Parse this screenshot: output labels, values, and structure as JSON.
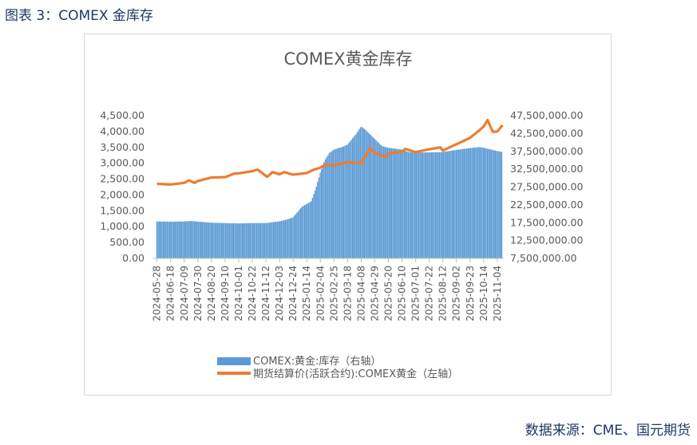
{
  "figure": {
    "caption": "图表 3：COMEX 金库存",
    "source": "数据来源：CME、国元期货"
  },
  "colors": {
    "caption": "#1f3864",
    "bars": "#5b9bd5",
    "line": "#ed7d31",
    "text": "#595959"
  },
  "chart_data": {
    "type": "bar",
    "title": "COMEX黄金库存",
    "grid": false,
    "legend_position": "bottom",
    "x_tick_labels": [
      "2024-05-28",
      "2024-06-18",
      "2024-07-09",
      "2024-07-30",
      "2024-08-20",
      "2024-09-10",
      "2024-10-01",
      "2024-10-22",
      "2024-11-12",
      "2024-12-03",
      "2024-12-24",
      "2025-01-14",
      "2025-02-04",
      "2025-02-25",
      "2025-03-18",
      "2025-04-08",
      "2025-04-29",
      "2025-05-20",
      "2025-06-10",
      "2025-07-01",
      "2025-07-22",
      "2025-08-12",
      "2025-09-02",
      "2025-09-23",
      "2025-10-14",
      "2025-11-04"
    ],
    "y_left": {
      "ticks": [
        "0.00",
        "500.00",
        "1,000.00",
        "1,500.00",
        "2,000.00",
        "2,500.00",
        "3,000.00",
        "3,500.00",
        "4,000.00",
        "4,500.00"
      ],
      "ylim": [
        0,
        4500
      ]
    },
    "y_right": {
      "ticks": [
        "7,500,000.00",
        "12,500,000.00",
        "17,500,000.00",
        "22,500,000.00",
        "27,500,000.00",
        "32,500,000.00",
        "37,500,000.00",
        "42,500,000.00",
        "47,500,000.00"
      ],
      "ylim": [
        7500000,
        47500000
      ]
    },
    "series": [
      {
        "name": "COMEX:黄金:库存（右轴）",
        "type": "bar",
        "axis": "right",
        "points": [
          [
            "2024-05-28",
            17850000
          ],
          [
            "2024-06-18",
            17800000
          ],
          [
            "2024-07-09",
            17850000
          ],
          [
            "2024-07-20",
            18000000
          ],
          [
            "2024-07-30",
            17800000
          ],
          [
            "2024-08-20",
            17500000
          ],
          [
            "2024-09-10",
            17400000
          ],
          [
            "2024-10-01",
            17300000
          ],
          [
            "2024-10-22",
            17400000
          ],
          [
            "2024-11-12",
            17400000
          ],
          [
            "2024-11-25",
            17700000
          ],
          [
            "2024-12-03",
            17900000
          ],
          [
            "2024-12-15",
            18400000
          ],
          [
            "2024-12-24",
            19000000
          ],
          [
            "2025-01-07",
            22000000
          ],
          [
            "2025-01-14",
            22700000
          ],
          [
            "2025-01-21",
            23500000
          ],
          [
            "2025-01-28",
            27000000
          ],
          [
            "2025-02-04",
            31500000
          ],
          [
            "2025-02-11",
            35000000
          ],
          [
            "2025-02-18",
            37000000
          ],
          [
            "2025-02-25",
            38000000
          ],
          [
            "2025-03-11",
            38800000
          ],
          [
            "2025-03-18",
            39400000
          ],
          [
            "2025-04-01",
            42500000
          ],
          [
            "2025-04-08",
            44500000
          ],
          [
            "2025-04-15",
            43500000
          ],
          [
            "2025-04-29",
            41000000
          ],
          [
            "2025-05-10",
            39000000
          ],
          [
            "2025-05-20",
            38500000
          ],
          [
            "2025-06-10",
            38000000
          ],
          [
            "2025-06-20",
            37300000
          ],
          [
            "2025-07-01",
            37200000
          ],
          [
            "2025-07-22",
            37200000
          ],
          [
            "2025-08-12",
            37300000
          ],
          [
            "2025-09-02",
            37900000
          ],
          [
            "2025-09-23",
            38400000
          ],
          [
            "2025-10-07",
            38700000
          ],
          [
            "2025-10-14",
            38500000
          ],
          [
            "2025-11-04",
            37600000
          ],
          [
            "2025-11-12",
            37300000
          ]
        ]
      },
      {
        "name": "期货结算价(活跃合约):COMEX黄金（左轴）",
        "type": "line",
        "axis": "left",
        "points": [
          [
            "2024-05-28",
            2350
          ],
          [
            "2024-06-18",
            2330
          ],
          [
            "2024-07-09",
            2380
          ],
          [
            "2024-07-16",
            2460
          ],
          [
            "2024-07-25",
            2380
          ],
          [
            "2024-07-30",
            2440
          ],
          [
            "2024-08-20",
            2550
          ],
          [
            "2024-09-10",
            2560
          ],
          [
            "2024-09-25",
            2680
          ],
          [
            "2024-10-01",
            2680
          ],
          [
            "2024-10-22",
            2750
          ],
          [
            "2024-10-30",
            2800
          ],
          [
            "2024-11-14",
            2570
          ],
          [
            "2024-11-22",
            2720
          ],
          [
            "2024-12-03",
            2650
          ],
          [
            "2024-12-10",
            2720
          ],
          [
            "2024-12-24",
            2640
          ],
          [
            "2025-01-14",
            2690
          ],
          [
            "2025-01-24",
            2790
          ],
          [
            "2025-02-04",
            2860
          ],
          [
            "2025-02-11",
            2950
          ],
          [
            "2025-02-25",
            2930
          ],
          [
            "2025-03-18",
            3040
          ],
          [
            "2025-04-08",
            3000
          ],
          [
            "2025-04-15",
            3240
          ],
          [
            "2025-04-22",
            3480
          ],
          [
            "2025-04-29",
            3330
          ],
          [
            "2025-05-15",
            3200
          ],
          [
            "2025-05-20",
            3300
          ],
          [
            "2025-06-10",
            3360
          ],
          [
            "2025-06-15",
            3450
          ],
          [
            "2025-07-01",
            3350
          ],
          [
            "2025-07-22",
            3440
          ],
          [
            "2025-08-08",
            3500
          ],
          [
            "2025-08-12",
            3400
          ],
          [
            "2025-09-02",
            3600
          ],
          [
            "2025-09-23",
            3800
          ],
          [
            "2025-10-08",
            4050
          ],
          [
            "2025-10-14",
            4160
          ],
          [
            "2025-10-20",
            4360
          ],
          [
            "2025-10-28",
            3990
          ],
          [
            "2025-11-04",
            4000
          ],
          [
            "2025-11-12",
            4200
          ]
        ]
      }
    ]
  }
}
